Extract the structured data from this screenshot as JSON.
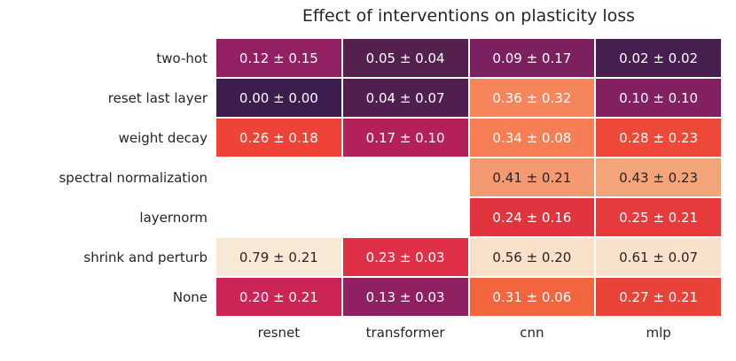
{
  "chart_data": {
    "type": "heatmap",
    "title": "Effect of interventions on plasticity loss",
    "colormap": "rocket",
    "background": "#ffffff",
    "empty_cell_color": "#ffffff",
    "text_dark": "#262626",
    "text_light": "#ffffff",
    "columns": [
      "resnet",
      "transformer",
      "cnn",
      "mlp"
    ],
    "rows": [
      "two-hot",
      "reset last layer",
      "weight decay",
      "spectral normalization",
      "layernorm",
      "shrink and perturb",
      "None"
    ],
    "cells": [
      [
        {
          "label": "0.12 ± 0.15",
          "value": 0.12,
          "error": 0.15,
          "bg": "#932063",
          "fg": "#ffffff"
        },
        {
          "label": "0.05 ± 0.04",
          "value": 0.05,
          "error": 0.04,
          "bg": "#56204e",
          "fg": "#ffffff"
        },
        {
          "label": "0.09 ± 0.17",
          "value": 0.09,
          "error": 0.17,
          "bg": "#7c2060",
          "fg": "#ffffff"
        },
        {
          "label": "0.02 ± 0.02",
          "value": 0.02,
          "error": 0.02,
          "bg": "#471e50",
          "fg": "#ffffff"
        }
      ],
      [
        {
          "label": "0.00 ± 0.00",
          "value": 0.0,
          "error": 0.0,
          "bg": "#3d1c4e",
          "fg": "#ffffff"
        },
        {
          "label": "0.04 ± 0.07",
          "value": 0.04,
          "error": 0.07,
          "bg": "#511f4f",
          "fg": "#ffffff"
        },
        {
          "label": "0.36 ± 0.32",
          "value": 0.36,
          "error": 0.32,
          "bg": "#f5865c",
          "fg": "#ffffff"
        },
        {
          "label": "0.10 ± 0.10",
          "value": 0.1,
          "error": 0.1,
          "bg": "#83205f",
          "fg": "#ffffff"
        }
      ],
      [
        {
          "label": "0.26 ± 0.18",
          "value": 0.26,
          "error": 0.18,
          "bg": "#ef4338",
          "fg": "#ffffff"
        },
        {
          "label": "0.17 ± 0.10",
          "value": 0.17,
          "error": 0.1,
          "bg": "#b4215a",
          "fg": "#ffffff"
        },
        {
          "label": "0.34 ± 0.08",
          "value": 0.34,
          "error": 0.08,
          "bg": "#f57e54",
          "fg": "#ffffff"
        },
        {
          "label": "0.28 ± 0.23",
          "value": 0.28,
          "error": 0.23,
          "bg": "#ee4938",
          "fg": "#ffffff"
        }
      ],
      [
        null,
        null,
        {
          "label": "0.41 ± 0.21",
          "value": 0.41,
          "error": 0.21,
          "bg": "#f59a70",
          "fg": "#262626"
        },
        {
          "label": "0.43 ± 0.23",
          "value": 0.43,
          "error": 0.23,
          "bg": "#f4a479",
          "fg": "#262626"
        }
      ],
      [
        null,
        null,
        {
          "label": "0.24 ± 0.16",
          "value": 0.24,
          "error": 0.16,
          "bg": "#e1343f",
          "fg": "#ffffff"
        },
        {
          "label": "0.25 ± 0.21",
          "value": 0.25,
          "error": 0.21,
          "bg": "#e73a3c",
          "fg": "#ffffff"
        }
      ],
      [
        {
          "label": "0.79 ± 0.21",
          "value": 0.79,
          "error": 0.21,
          "bg": "#f8e9d6",
          "fg": "#262626"
        },
        {
          "label": "0.23 ± 0.03",
          "value": 0.23,
          "error": 0.03,
          "bg": "#df3048",
          "fg": "#ffffff"
        },
        {
          "label": "0.56 ± 0.20",
          "value": 0.56,
          "error": 0.2,
          "bg": "#f9e0c8",
          "fg": "#262626"
        },
        {
          "label": "0.61 ± 0.07",
          "value": 0.61,
          "error": 0.07,
          "bg": "#f9e2cb",
          "fg": "#262626"
        }
      ],
      [
        {
          "label": "0.20 ± 0.21",
          "value": 0.2,
          "error": 0.21,
          "bg": "#cd2456",
          "fg": "#ffffff"
        },
        {
          "label": "0.13 ± 0.03",
          "value": 0.13,
          "error": 0.03,
          "bg": "#8f2062",
          "fg": "#ffffff"
        },
        {
          "label": "0.31 ± 0.06",
          "value": 0.31,
          "error": 0.06,
          "bg": "#f3653f",
          "fg": "#ffffff"
        },
        {
          "label": "0.27 ± 0.21",
          "value": 0.27,
          "error": 0.21,
          "bg": "#e94238",
          "fg": "#ffffff"
        }
      ]
    ]
  }
}
